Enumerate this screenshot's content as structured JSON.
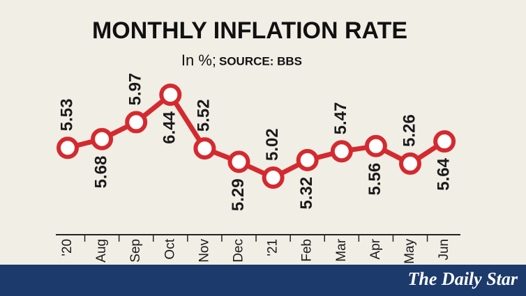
{
  "chart_data": {
    "type": "line",
    "title": "MONTHLY INFLATION RATE",
    "subtitle": "In %;",
    "source": "SOURCE: BBS",
    "categories": [
      "'20",
      "Aug",
      "Sep",
      "Oct",
      "Nov",
      "Dec",
      "'21",
      "Feb",
      "Mar",
      "Apr",
      "May",
      "Jun"
    ],
    "series": [
      {
        "name": "Inflation",
        "color": "#d42a2f",
        "values": [
          5.53,
          5.68,
          5.97,
          6.44,
          5.52,
          5.29,
          5.02,
          5.32,
          5.47,
          5.56,
          5.26,
          5.64
        ]
      }
    ]
  },
  "footer": {
    "brand": "The Daily Star"
  }
}
